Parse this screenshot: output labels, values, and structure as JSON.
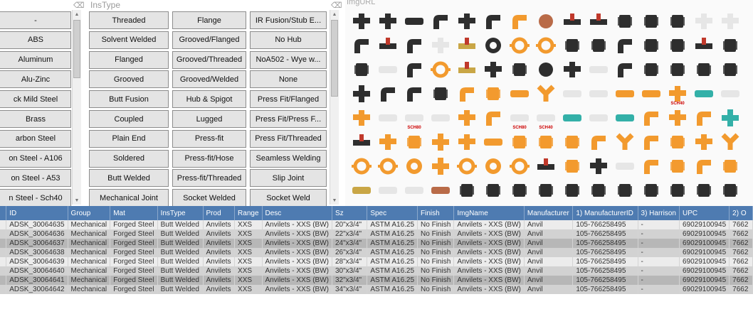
{
  "col1": {
    "items": [
      "-",
      "ABS",
      "Aluminum",
      "Alu-Zinc",
      "ck Mild Steel",
      "Brass",
      "arbon Steel",
      "on Steel - A106",
      "on Steel - A53",
      "n Steel - Sch40"
    ]
  },
  "instype": {
    "title": "InsType",
    "items": [
      [
        "Threaded",
        "Flange",
        "IR Fusion/Stub E..."
      ],
      [
        "Solvent Welded",
        "Grooved/Flanged",
        "No Hub"
      ],
      [
        "Flanged",
        "Grooved/Threaded",
        "NoA502 - Wye w..."
      ],
      [
        "Grooved",
        "Grooved/Welded",
        "None"
      ],
      [
        "Butt Fusion",
        "Hub & Spigot",
        "Press Fit/Flanged"
      ],
      [
        "Coupled",
        "Lugged",
        "Press Fit/Press F..."
      ],
      [
        "Plain End",
        "Press-fit",
        "Press Fit/Threaded"
      ],
      [
        "Soldered",
        "Press-fit/Hose",
        "Seamless Welding"
      ],
      [
        "Butt Welded",
        "Press-fit/Threaded",
        "Slip Joint"
      ],
      [
        "Mechanical Joint",
        "Socket Welded",
        "Socket Weld"
      ]
    ]
  },
  "gallery": {
    "title": "ImgURL",
    "labels": {
      "sch80": "SCH80",
      "sch40": "SCH40"
    },
    "colors": {
      "orange": "#f29a2e",
      "black": "#2e2e2e",
      "white": "#e6e6e6",
      "brass": "#c9a646",
      "teal": "#33b0a8",
      "copper": "#b96b48",
      "red": "#c0392b"
    }
  },
  "table": {
    "columns": [
      "",
      "ID",
      "Group",
      "Mat",
      "InsType",
      "Prod",
      "Range",
      "Desc",
      "Sz",
      "Spec",
      "Finish",
      "ImgName",
      "Manufacturer",
      "1) ManufacturerID",
      "3) Harrison",
      "UPC",
      "2) O"
    ],
    "rows": [
      [
        "ADSK_30064635",
        "Mechanical",
        "Forged Steel",
        "Butt Welded",
        "Anvilets",
        "XXS",
        "Anvilets - XXS (BW)",
        "20\"x3/4\"",
        "ASTM A16.25",
        "No Finish",
        "Anvilets - XXS (BW)",
        "Anvil",
        "105-766258495",
        "-",
        "69029100945",
        "7662"
      ],
      [
        "ADSK_30064636",
        "Mechanical",
        "Forged Steel",
        "Butt Welded",
        "Anvilets",
        "XXS",
        "Anvilets - XXS (BW)",
        "22\"x3/4\"",
        "ASTM A16.25",
        "No Finish",
        "Anvilets - XXS (BW)",
        "Anvil",
        "105-766258495",
        "-",
        "69029100945",
        "7662"
      ],
      [
        "ADSK_30064637",
        "Mechanical",
        "Forged Steel",
        "Butt Welded",
        "Anvilets",
        "XXS",
        "Anvilets - XXS (BW)",
        "24\"x3/4\"",
        "ASTM A16.25",
        "No Finish",
        "Anvilets - XXS (BW)",
        "Anvil",
        "105-766258495",
        "-",
        "69029100945",
        "7662"
      ],
      [
        "ADSK_30064638",
        "Mechanical",
        "Forged Steel",
        "Butt Welded",
        "Anvilets",
        "XXS",
        "Anvilets - XXS (BW)",
        "26\"x3/4\"",
        "ASTM A16.25",
        "No Finish",
        "Anvilets - XXS (BW)",
        "Anvil",
        "105-766258495",
        "-",
        "69029100945",
        "7662"
      ],
      [
        "ADSK_30064639",
        "Mechanical",
        "Forged Steel",
        "Butt Welded",
        "Anvilets",
        "XXS",
        "Anvilets - XXS (BW)",
        "28\"x3/4\"",
        "ASTM A16.25",
        "No Finish",
        "Anvilets - XXS (BW)",
        "Anvil",
        "105-766258495",
        "-",
        "69029100945",
        "7662"
      ],
      [
        "ADSK_30064640",
        "Mechanical",
        "Forged Steel",
        "Butt Welded",
        "Anvilets",
        "XXS",
        "Anvilets - XXS (BW)",
        "30\"x3/4\"",
        "ASTM A16.25",
        "No Finish",
        "Anvilets - XXS (BW)",
        "Anvil",
        "105-766258495",
        "-",
        "69029100945",
        "7662"
      ],
      [
        "ADSK_30064641",
        "Mechanical",
        "Forged Steel",
        "Butt Welded",
        "Anvilets",
        "XXS",
        "Anvilets - XXS (BW)",
        "32\"x3/4\"",
        "ASTM A16.25",
        "No Finish",
        "Anvilets - XXS (BW)",
        "Anvil",
        "105-766258495",
        "-",
        "69029100945",
        "7662"
      ],
      [
        "ADSK_30064642",
        "Mechanical",
        "Forged Steel",
        "Butt Welded",
        "Anvilets",
        "XXS",
        "Anvilets - XXS (BW)",
        "34\"x3/4\"",
        "ASTM A16.25",
        "No Finish",
        "Anvilets - XXS (BW)",
        "Anvil",
        "105-766258495",
        "-",
        "69029100945",
        "7662"
      ]
    ]
  }
}
